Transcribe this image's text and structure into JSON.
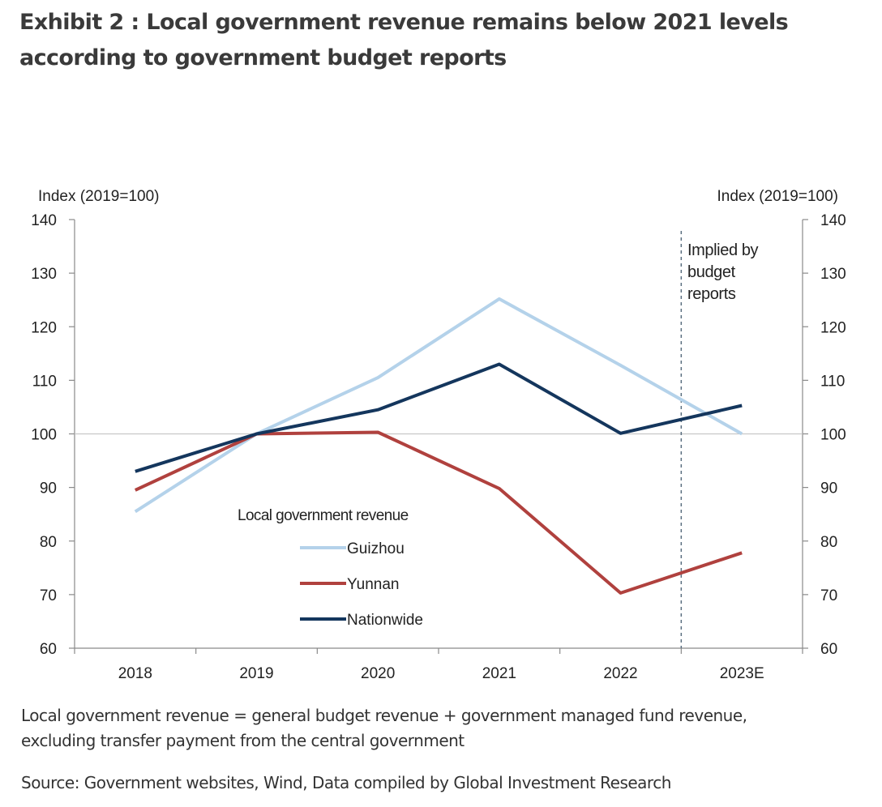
{
  "title": "Exhibit 2 : Local government revenue remains below 2021 levels according to government budget reports",
  "footnote": {
    "line1": "Local government revenue = general budget revenue + government managed fund revenue,",
    "line2": "excluding transfer payment from the central government"
  },
  "source": "Source: Government websites, Wind, Data compiled by Global Investment Research",
  "chart_data": {
    "type": "line",
    "categories": [
      "2018",
      "2019",
      "2020",
      "2021",
      "2022",
      "2023E"
    ],
    "ylabel_left": "Index (2019=100)",
    "ylabel_right": "Index (2019=100)",
    "ylim": [
      60,
      140
    ],
    "yticks": [
      60,
      70,
      80,
      90,
      100,
      110,
      120,
      130,
      140
    ],
    "reference_line": 100,
    "legend_title": "Local government revenue",
    "annotation": "Implied by budget reports",
    "series": [
      {
        "name": "Guizhou",
        "color": "#b4d2ea",
        "values": [
          85.5,
          100,
          110.5,
          125.2,
          112.8,
          100
        ]
      },
      {
        "name": "Yunnan",
        "color": "#b0413e",
        "values": [
          89.5,
          100,
          100.3,
          89.8,
          70.3,
          77.8
        ]
      },
      {
        "name": "Nationwide",
        "color": "#14365d",
        "values": [
          93,
          100,
          104.5,
          113,
          100.1,
          105.3
        ]
      }
    ]
  }
}
